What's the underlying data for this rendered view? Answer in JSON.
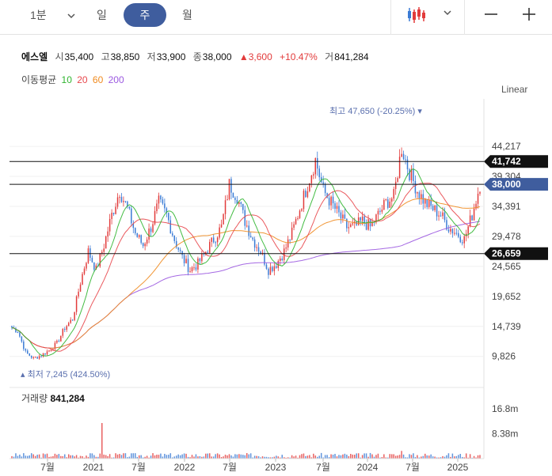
{
  "toolbar": {
    "interval_1min": "1분",
    "day": "일",
    "week": "주",
    "month": "월",
    "chart_type_icon": "candlestick-icon",
    "dropdown_icon": "chevron-down-icon",
    "zoom_out_icon": "minus-icon",
    "zoom_in_icon": "plus-icon"
  },
  "info": {
    "name": "에스엘",
    "open_label": "시",
    "open": "35,400",
    "high_label": "고",
    "high": "38,850",
    "low_label": "저",
    "low": "33,900",
    "close_label": "종",
    "close": "38,000",
    "change": "3,600",
    "change_pct": "+10.47%",
    "volume_label": "거",
    "volume": "841,284"
  },
  "ma": {
    "label": "이동평균",
    "p10": "10",
    "p20": "20",
    "p60": "60",
    "p200": "200",
    "colors": {
      "p10": "#2fb52f",
      "p20": "#e8474c",
      "p60": "#f08a1e",
      "p200": "#9b59e0"
    }
  },
  "scale": "Linear",
  "annotations": {
    "max": "최고 47,650 (-20.25%)",
    "min": "최저 7,245 (424.50%)"
  },
  "lines": {
    "upper": "41,742",
    "current": "38,000",
    "lower": "26,659"
  },
  "volume_panel": {
    "label": "거래량",
    "value": "841,284",
    "ticks": [
      "16.8m",
      "8.38m"
    ]
  },
  "colors": {
    "up": "#e23b3b",
    "down": "#3a7bd5",
    "current_tag": "#3f5d9e",
    "line_tag": "#111111"
  },
  "chart_data": {
    "type": "candlestick",
    "price_ticks": [
      "44,217",
      "39,304",
      "34,391",
      "29,478",
      "24,565",
      "19,652",
      "14,739",
      "9,826"
    ],
    "x_ticks": [
      "7월",
      "2021",
      "7월",
      "2022",
      "7월",
      "2023",
      "7월",
      "2024",
      "7월",
      "2025"
    ],
    "ylim": [
      5000,
      52000
    ],
    "x": [
      "2020-05",
      "2020-06",
      "2020-07",
      "2020-08",
      "2020-09",
      "2020-10",
      "2020-11",
      "2020-12",
      "2021-01",
      "2021-02",
      "2021-03",
      "2021-04",
      "2021-05",
      "2021-06",
      "2021-07",
      "2021-08",
      "2021-09",
      "2021-10",
      "2021-11",
      "2021-12",
      "2022-01",
      "2022-02",
      "2022-03",
      "2022-04",
      "2022-05",
      "2022-06",
      "2022-07",
      "2022-08",
      "2022-09",
      "2022-10",
      "2022-11",
      "2022-12",
      "2023-01",
      "2023-02",
      "2023-03",
      "2023-04",
      "2023-05",
      "2023-06",
      "2023-07",
      "2023-08",
      "2023-09",
      "2023-10",
      "2023-11",
      "2023-12",
      "2024-01",
      "2024-02",
      "2024-03",
      "2024-04",
      "2024-05",
      "2024-06",
      "2024-07",
      "2024-08",
      "2024-09",
      "2024-10",
      "2024-11",
      "2024-12",
      "2025-01",
      "2025-02",
      "2025-03",
      "2025-04"
    ],
    "close": [
      14000,
      10500,
      9500,
      10000,
      10800,
      12000,
      14500,
      16000,
      22000,
      27000,
      24000,
      28000,
      33000,
      37000,
      34000,
      30000,
      28000,
      31000,
      35000,
      33000,
      29000,
      26000,
      24000,
      25000,
      27000,
      29000,
      31000,
      38000,
      36000,
      32000,
      29000,
      27000,
      24000,
      25000,
      27000,
      30000,
      34000,
      38000,
      42000,
      37000,
      35000,
      33000,
      31000,
      31000,
      32000,
      31000,
      33000,
      35000,
      36000,
      44000,
      40000,
      37000,
      35000,
      34000,
      33000,
      31000,
      30000,
      29000,
      33000,
      38000
    ],
    "volume_scale_max": 20000000
  }
}
